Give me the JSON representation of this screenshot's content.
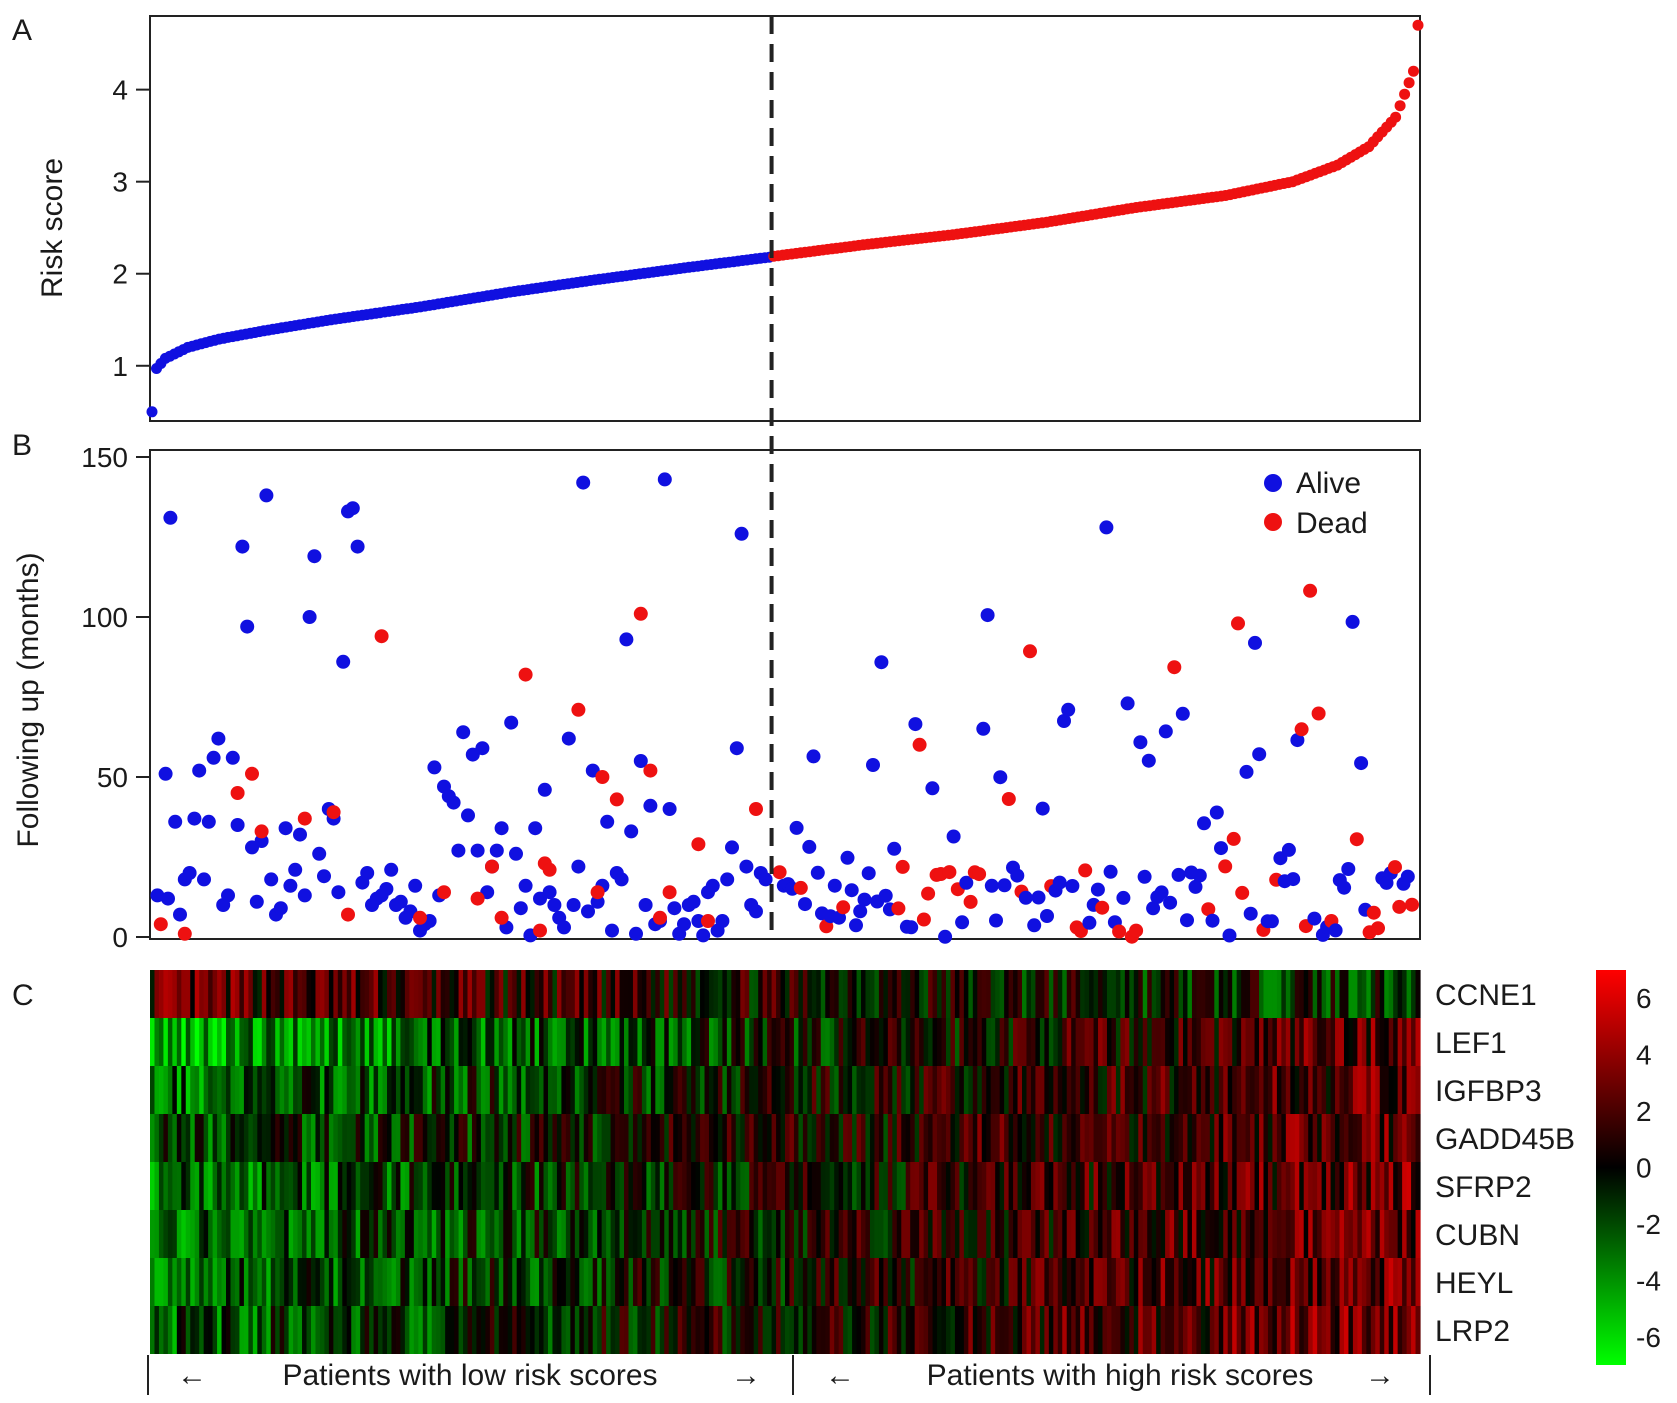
{
  "panels": {
    "a": "A",
    "b": "B",
    "c": "C"
  },
  "chart_data": [
    {
      "type": "scatter",
      "panel": "A",
      "xlabel": "",
      "ylabel": "Risk score",
      "ylim": [
        0.4,
        4.8
      ],
      "yticks": [
        1,
        2,
        3,
        4
      ],
      "n_patients": 284,
      "cutoff_index": 138,
      "series": [
        {
          "name": "low",
          "color": "#1010e0",
          "curve": [
            [
              0,
              0.5
            ],
            [
              1,
              0.97
            ],
            [
              3,
              1.08
            ],
            [
              8,
              1.2
            ],
            [
              15,
              1.29
            ],
            [
              25,
              1.38
            ],
            [
              40,
              1.5
            ],
            [
              60,
              1.64
            ],
            [
              80,
              1.8
            ],
            [
              100,
              1.94
            ],
            [
              120,
              2.07
            ],
            [
              138,
              2.18
            ]
          ]
        },
        {
          "name": "high",
          "color": "#ee1111",
          "curve": [
            [
              139,
              2.19
            ],
            [
              160,
              2.32
            ],
            [
              180,
              2.43
            ],
            [
              200,
              2.56
            ],
            [
              220,
              2.72
            ],
            [
              240,
              2.85
            ],
            [
              255,
              3.0
            ],
            [
              265,
              3.18
            ],
            [
              272,
              3.38
            ],
            [
              278,
              3.7
            ],
            [
              282,
              4.2
            ],
            [
              283,
              4.7
            ]
          ]
        }
      ]
    },
    {
      "type": "scatter",
      "panel": "B",
      "xlabel": "",
      "ylabel": "Following up (months)",
      "ylim": [
        0,
        150
      ],
      "yticks": [
        0,
        50,
        100,
        150
      ],
      "legend_position": "top-right",
      "series": [
        {
          "name": "Alive",
          "color": "#1010e0",
          "points": [
            [
              0.3,
              13
            ],
            [
              2,
              51
            ],
            [
              2.5,
              12
            ],
            [
              3,
              131
            ],
            [
              4,
              36
            ],
            [
              5,
              7
            ],
            [
              6,
              18
            ],
            [
              7,
              20
            ],
            [
              8,
              37
            ],
            [
              9,
              52
            ],
            [
              10,
              18
            ],
            [
              11,
              36
            ],
            [
              12,
              56
            ],
            [
              13,
              62
            ],
            [
              14,
              10
            ],
            [
              15,
              13
            ],
            [
              16,
              56
            ],
            [
              17,
              35
            ],
            [
              18,
              122
            ],
            [
              19,
              97
            ],
            [
              20,
              28
            ],
            [
              21,
              11
            ],
            [
              22,
              30
            ],
            [
              23,
              138
            ],
            [
              24,
              18
            ],
            [
              25,
              7
            ],
            [
              26,
              9
            ],
            [
              27,
              34
            ],
            [
              28,
              16
            ],
            [
              29,
              21
            ],
            [
              30,
              32
            ],
            [
              31,
              13
            ],
            [
              32,
              100
            ],
            [
              33,
              119
            ],
            [
              34,
              26
            ],
            [
              35,
              19
            ],
            [
              36,
              40
            ],
            [
              37,
              37
            ],
            [
              38,
              14
            ],
            [
              39,
              86
            ],
            [
              40,
              133
            ],
            [
              41,
              134
            ],
            [
              42,
              122
            ],
            [
              43,
              17
            ],
            [
              44,
              20
            ],
            [
              45,
              10
            ],
            [
              46,
              12
            ],
            [
              47,
              13
            ],
            [
              48,
              15
            ],
            [
              49,
              21
            ],
            [
              50,
              10
            ],
            [
              51,
              11
            ],
            [
              52,
              6
            ],
            [
              53,
              8
            ],
            [
              54,
              16
            ],
            [
              55,
              2
            ],
            [
              56,
              4
            ],
            [
              57,
              5
            ],
            [
              58,
              53
            ],
            [
              59,
              13
            ],
            [
              60,
              47
            ],
            [
              61,
              44
            ],
            [
              62,
              42
            ],
            [
              63,
              27
            ],
            [
              64,
              64
            ],
            [
              65,
              38
            ],
            [
              66,
              57
            ],
            [
              67,
              27
            ],
            [
              68,
              59
            ],
            [
              69,
              14
            ],
            [
              70,
              22
            ],
            [
              71,
              27
            ],
            [
              72,
              34
            ],
            [
              73,
              3
            ],
            [
              74,
              67
            ],
            [
              75,
              26
            ],
            [
              76,
              9
            ],
            [
              77,
              16
            ],
            [
              78,
              0.5
            ],
            [
              79,
              34
            ],
            [
              80,
              12
            ],
            [
              81,
              46
            ],
            [
              82,
              14
            ],
            [
              83,
              10
            ],
            [
              84,
              6
            ],
            [
              85,
              3
            ],
            [
              86,
              62
            ],
            [
              87,
              10
            ],
            [
              88,
              22
            ],
            [
              89,
              142
            ],
            [
              90,
              8
            ],
            [
              91,
              52
            ],
            [
              92,
              11
            ],
            [
              93,
              16
            ],
            [
              94,
              36
            ],
            [
              95,
              2
            ],
            [
              96,
              20
            ],
            [
              97,
              18
            ],
            [
              98,
              93
            ],
            [
              99,
              33
            ],
            [
              100,
              1
            ],
            [
              101,
              55
            ],
            [
              102,
              10
            ],
            [
              103,
              41
            ],
            [
              104,
              4
            ],
            [
              105,
              5
            ],
            [
              106,
              143
            ],
            [
              107,
              40
            ],
            [
              108,
              9
            ],
            [
              109,
              1
            ],
            [
              110,
              4
            ],
            [
              111,
              10
            ],
            [
              112,
              11
            ],
            [
              113,
              5
            ],
            [
              114,
              0.5
            ],
            [
              115,
              14
            ],
            [
              116,
              16
            ],
            [
              117,
              2
            ],
            [
              118,
              5
            ],
            [
              119,
              18
            ],
            [
              120,
              28
            ],
            [
              121,
              59
            ],
            [
              122,
              126
            ],
            [
              123,
              22
            ],
            [
              124,
              10
            ],
            [
              125,
              8
            ],
            [
              126,
              20
            ],
            [
              127,
              18
            ]
          ]
        },
        {
          "name": "Dead",
          "color": "#ee1111",
          "points": [
            [
              1,
              4
            ],
            [
              6,
              1
            ],
            [
              17,
              45
            ],
            [
              20,
              51
            ],
            [
              22,
              33
            ],
            [
              31,
              37
            ],
            [
              37,
              39
            ],
            [
              40,
              7
            ],
            [
              47,
              94
            ],
            [
              55,
              6
            ],
            [
              60,
              14
            ],
            [
              67,
              12
            ],
            [
              70,
              22
            ],
            [
              72,
              6
            ],
            [
              77,
              82
            ],
            [
              80,
              2
            ],
            [
              81,
              23
            ],
            [
              82,
              21
            ],
            [
              88,
              71
            ],
            [
              92,
              14
            ],
            [
              93,
              50
            ],
            [
              96,
              43
            ],
            [
              101,
              101
            ],
            [
              103,
              52
            ],
            [
              105,
              6
            ],
            [
              107,
              14
            ],
            [
              113,
              29
            ],
            [
              115,
              5
            ],
            [
              125,
              40
            ]
          ]
        }
      ]
    },
    {
      "type": "heatmap",
      "panel": "C",
      "rows": [
        "CCNE1",
        "LEF1",
        "IGFBP3",
        "GADD45B",
        "SFRP2",
        "CUBN",
        "HEYL",
        "LRP2"
      ],
      "columns": 284,
      "colorbar": {
        "min": -7,
        "max": 7,
        "ticks": [
          "6",
          "4",
          "2",
          "0",
          "-2",
          "-4",
          "-6"
        ],
        "low_color": "#00ff00",
        "mid_color": "#000000",
        "high_color": "#ff0000"
      },
      "row_trends": [
        [
          2.2,
          -1.4
        ],
        [
          -4.5,
          2.8
        ],
        [
          -3.0,
          2.5
        ],
        [
          -2.0,
          2.6
        ],
        [
          -3.2,
          2.9
        ],
        [
          -3.0,
          2.9
        ],
        [
          -3.0,
          3.0
        ],
        [
          -2.5,
          3.2
        ]
      ]
    }
  ],
  "footer": {
    "low_label": "Patients with low risk scores",
    "high_label": "Patients with high risk scores",
    "arrow_left": "←",
    "arrow_right": "→"
  }
}
